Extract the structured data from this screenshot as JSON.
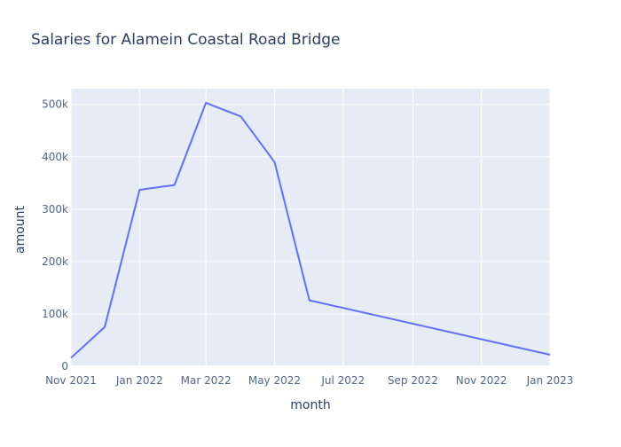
{
  "chart_data": {
    "type": "line",
    "title": "Salaries for Alamein Coastal Road Bridge",
    "xlabel": "month",
    "ylabel": "amount",
    "x": [
      "2021-11-01",
      "2021-12-01",
      "2022-01-01",
      "2022-02-01",
      "2022-03-01",
      "2022-04-01",
      "2022-05-01",
      "2022-06-01",
      "2023-01-01"
    ],
    "series": [
      {
        "values": [
          16000,
          75000,
          337000,
          346000,
          503000,
          477000,
          390000,
          126000,
          22000
        ]
      }
    ],
    "xlim": [
      "2021-11-01",
      "2023-01-01"
    ],
    "ylim": [
      0,
      530000
    ],
    "x_ticks": [
      {
        "value": "2021-11-01",
        "label": "Nov 2021"
      },
      {
        "value": "2022-01-01",
        "label": "Jan 2022"
      },
      {
        "value": "2022-03-01",
        "label": "Mar 2022"
      },
      {
        "value": "2022-05-01",
        "label": "May 2022"
      },
      {
        "value": "2022-07-01",
        "label": "Jul 2022"
      },
      {
        "value": "2022-09-01",
        "label": "Sep 2022"
      },
      {
        "value": "2022-11-01",
        "label": "Nov 2022"
      },
      {
        "value": "2023-01-01",
        "label": "Jan 2023"
      }
    ],
    "y_ticks": [
      {
        "value": 0,
        "label": "0"
      },
      {
        "value": 100000,
        "label": "100k"
      },
      {
        "value": 200000,
        "label": "200k"
      },
      {
        "value": 300000,
        "label": "300k"
      },
      {
        "value": 400000,
        "label": "400k"
      },
      {
        "value": 500000,
        "label": "500k"
      }
    ],
    "grid": true,
    "colors": {
      "line": "#636efa",
      "plot_bg": "#e5ecf6",
      "grid": "#ffffff",
      "text": "#2a3f5f",
      "tick_text": "#506784"
    }
  }
}
